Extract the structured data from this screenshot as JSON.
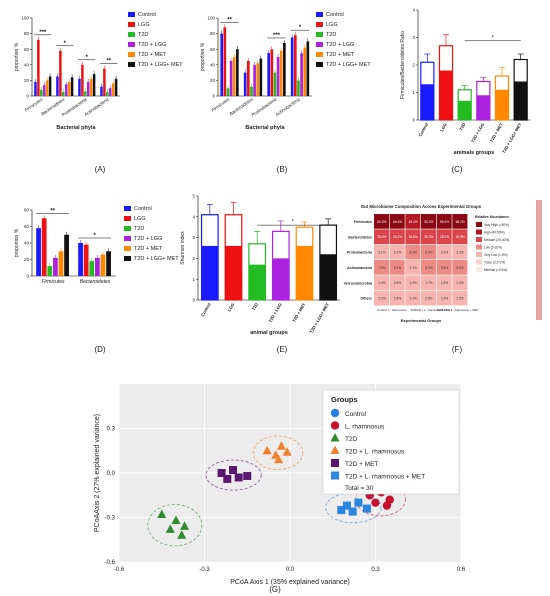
{
  "panel_labels": [
    "(A)",
    "(B)",
    "(C)",
    "(D)",
    "(E)",
    "(F)",
    "(G)"
  ],
  "colors": {
    "Control": "#1a1aff",
    "LGG": "#ee1111",
    "T2D": "#22bb22",
    "T2D + LGG": "#aa22dd",
    "T2D + MET": "#ff8800",
    "T2D + LGG + MET": "#111111",
    "LGG+MET_ref": "#111111"
  },
  "legend_six": [
    "Control",
    "LGG",
    "T2D",
    "T2D + LGG",
    "T2D + MET",
    "T2D + LGG+ MET"
  ],
  "chart_data": [
    {
      "id": "A",
      "type": "bar",
      "ylabel": "proportion %",
      "xlabel": "Bacterial phyla",
      "ylim": [
        0,
        100
      ],
      "yticks": [
        0,
        20,
        40,
        60,
        80,
        100
      ],
      "categories": [
        "Firmicutes",
        "Bacteroidetes",
        "Proteobacteria",
        "Actinobacteria"
      ],
      "series": [
        {
          "name": "Control",
          "values": [
            18,
            25,
            22,
            12
          ]
        },
        {
          "name": "LGG",
          "values": [
            72,
            58,
            40,
            35
          ]
        },
        {
          "name": "T2D",
          "values": [
            8,
            5,
            6,
            5
          ]
        },
        {
          "name": "T2D + LGG",
          "values": [
            14,
            15,
            18,
            10
          ]
        },
        {
          "name": "T2D + MET",
          "values": [
            20,
            18,
            22,
            16
          ]
        },
        {
          "name": "T2D + LGG+ MET",
          "values": [
            25,
            24,
            28,
            22
          ]
        }
      ],
      "significance": [
        "***",
        "*",
        "*",
        "**"
      ]
    },
    {
      "id": "B",
      "type": "bar",
      "ylabel": "proportion %",
      "xlabel": "Bacterial phyla",
      "ylim": [
        0,
        100
      ],
      "yticks": [
        0,
        20,
        40,
        60,
        80,
        100
      ],
      "categories": [
        "Firmicutes",
        "Bacteroidetes",
        "Proteobacteria",
        "Actinobacteria"
      ],
      "series": [
        {
          "name": "Control",
          "values": [
            80,
            30,
            55,
            75
          ]
        },
        {
          "name": "LGG",
          "values": [
            88,
            45,
            60,
            78
          ]
        },
        {
          "name": "T2D",
          "values": [
            10,
            12,
            30,
            20
          ]
        },
        {
          "name": "T2D + LGG",
          "values": [
            45,
            40,
            50,
            55
          ]
        },
        {
          "name": "T2D + MET",
          "values": [
            50,
            42,
            58,
            62
          ]
        },
        {
          "name": "T2D + LGG+ MET",
          "values": [
            60,
            48,
            68,
            70
          ]
        }
      ],
      "significance": [
        "**",
        "",
        "***",
        "*"
      ]
    },
    {
      "id": "C",
      "type": "bar",
      "ylabel": "Firmicutes/Bacteroidetes Ratio",
      "xlabel": "animals groups",
      "ylim": [
        0,
        4
      ],
      "yticks": [
        0,
        1,
        2,
        3,
        4
      ],
      "categories": [
        "Control",
        "LGG",
        "T2D",
        "T2D + LGG",
        "T2D + MET",
        "T2D + LGG+ MET"
      ],
      "values": [
        2.1,
        2.7,
        1.1,
        1.4,
        1.6,
        2.2
      ],
      "inner_values": [
        1.3,
        1.8,
        0.7,
        0.9,
        1.1,
        1.4
      ],
      "errors": [
        0.3,
        0.4,
        0.15,
        0.15,
        0.3,
        0.2
      ],
      "significance": [
        "*"
      ]
    },
    {
      "id": "D",
      "type": "bar",
      "ylabel": "proportion %",
      "xlabel": "",
      "ylim": [
        0,
        80
      ],
      "yticks": [
        0,
        20,
        40,
        60,
        80
      ],
      "categories": [
        "Firmicutes",
        "Bacteroidetes"
      ],
      "series": [
        {
          "name": "Control",
          "values": [
            58,
            40
          ]
        },
        {
          "name": "LGG",
          "values": [
            70,
            38
          ]
        },
        {
          "name": "T2D",
          "values": [
            12,
            18
          ]
        },
        {
          "name": "T2D + LGG",
          "values": [
            22,
            22
          ]
        },
        {
          "name": "T2D + MET",
          "values": [
            30,
            26
          ]
        },
        {
          "name": "T2D + LGG+ MET",
          "values": [
            50,
            30
          ]
        }
      ],
      "significance": [
        "**",
        "*"
      ]
    },
    {
      "id": "E",
      "type": "bar",
      "ylabel": "Shannon index",
      "xlabel": "animal groups",
      "ylim": [
        0,
        5
      ],
      "yticks": [
        0,
        1,
        2,
        3,
        4,
        5
      ],
      "categories": [
        "Control",
        "LGG",
        "T2D",
        "T2D + LGG",
        "T2D + MET",
        "T2D + LGG+ MET"
      ],
      "values": [
        4.1,
        4.1,
        2.7,
        3.3,
        3.5,
        3.6
      ],
      "inner_values": [
        2.6,
        2.6,
        1.7,
        2.0,
        2.6,
        2.2
      ],
      "errors": [
        0.5,
        0.6,
        0.6,
        0.5,
        0.25,
        0.3
      ],
      "significance": [
        "*"
      ]
    },
    {
      "id": "F",
      "type": "heatmap",
      "title": "Gut Microbiome Composition Across Experimental Groups",
      "rows": [
        "Firmicutes",
        "Bacteroidetes",
        "Proteobacteria",
        "Actinobacteria",
        "Verrucomicrobia",
        "Others"
      ],
      "cols": [
        "Control",
        "L. rhamnosus",
        "T2D",
        "T2D + L. rhamnosus",
        "T2D + MET",
        "T2D + L. rhamnosus + MET"
      ],
      "values": [
        [
          60.2,
          65.4,
          45.1,
          50.3,
          55.0,
          58.2
        ],
        [
          25.4,
          20.1,
          35.6,
          30.2,
          28.0,
          26.5
        ],
        [
          3.1,
          2.2,
          8.0,
          5.4,
          4.1,
          3.2
        ],
        [
          7.0,
          8.2,
          3.1,
          5.0,
          5.6,
          6.5
        ],
        [
          2.4,
          2.6,
          1.0,
          1.7,
          1.8,
          2.0
        ],
        [
          2.2,
          1.5,
          3.1,
          2.6,
          2.4,
          2.5
        ]
      ],
      "xlabel": "Experimental Groups",
      "legend_title": "Relative Abundance",
      "legend_levels": [
        "Very High (>50%)",
        "High (40-50%)",
        "Medium (20-40%)",
        "Low (5-10%)",
        "Very Low (1-5%)",
        "Trace (0.5-1%)",
        "Minimal (<0.5%)"
      ],
      "legend_colors": [
        "#8b0a14",
        "#b31a24",
        "#d9454b",
        "#ec8a85",
        "#f5b4ad",
        "#f9d2cb",
        "#fce8e4"
      ]
    },
    {
      "id": "G",
      "type": "scatter",
      "xlabel": "PCoA Axis 1 (35% explained variance)",
      "ylabel": "PCoAAxis 2 (27% explained variance)",
      "xlim": [
        -0.6,
        0.6
      ],
      "ylim": [
        -0.6,
        0.6
      ],
      "xticks": [
        -0.6,
        -0.3,
        0.0,
        0.3,
        0.6
      ],
      "yticks": [
        -0.6,
        -0.3,
        0.0,
        0.3
      ],
      "legend_title": "Groups",
      "legend_note": "Total = 30",
      "series": [
        {
          "name": "Control",
          "marker": "circle",
          "color": "#2a7ee0",
          "points": [
            [
              0.3,
              0.38
            ],
            [
              0.33,
              0.35
            ],
            [
              0.36,
              0.37
            ],
            [
              0.32,
              0.3
            ],
            [
              0.35,
              0.31
            ]
          ]
        },
        {
          "name": "L. rhamnosus",
          "marker": "circle",
          "color": "#c8102e",
          "points": [
            [
              0.28,
              -0.15
            ],
            [
              0.32,
              -0.13
            ],
            [
              0.3,
              -0.2
            ],
            [
              0.35,
              -0.18
            ],
            [
              0.34,
              -0.22
            ]
          ]
        },
        {
          "name": "T2D",
          "marker": "triangle",
          "color": "#2e8b2e",
          "points": [
            [
              -0.45,
              -0.28
            ],
            [
              -0.4,
              -0.32
            ],
            [
              -0.42,
              -0.38
            ],
            [
              -0.37,
              -0.36
            ],
            [
              -0.38,
              -0.42
            ]
          ]
        },
        {
          "name": "T2D + L. rhamnosus",
          "marker": "triangle",
          "color": "#f07f2c",
          "points": [
            [
              -0.08,
              0.15
            ],
            [
              -0.03,
              0.18
            ],
            [
              -0.05,
              0.12
            ],
            [
              -0.01,
              0.14
            ],
            [
              -0.04,
              0.09
            ]
          ]
        },
        {
          "name": "T2D + MET",
          "marker": "square",
          "color": "#5b1670",
          "points": [
            [
              -0.24,
              0.0
            ],
            [
              -0.2,
              0.02
            ],
            [
              -0.22,
              -0.04
            ],
            [
              -0.18,
              -0.03
            ],
            [
              -0.15,
              -0.02
            ]
          ]
        },
        {
          "name": "T2D + L. rhamnosus + MET",
          "marker": "square",
          "color": "#2a86e0",
          "points": [
            [
              0.2,
              -0.22
            ],
            [
              0.24,
              -0.2
            ],
            [
              0.22,
              -0.26
            ],
            [
              0.27,
              -0.24
            ],
            [
              0.18,
              -0.25
            ]
          ]
        }
      ]
    }
  ]
}
